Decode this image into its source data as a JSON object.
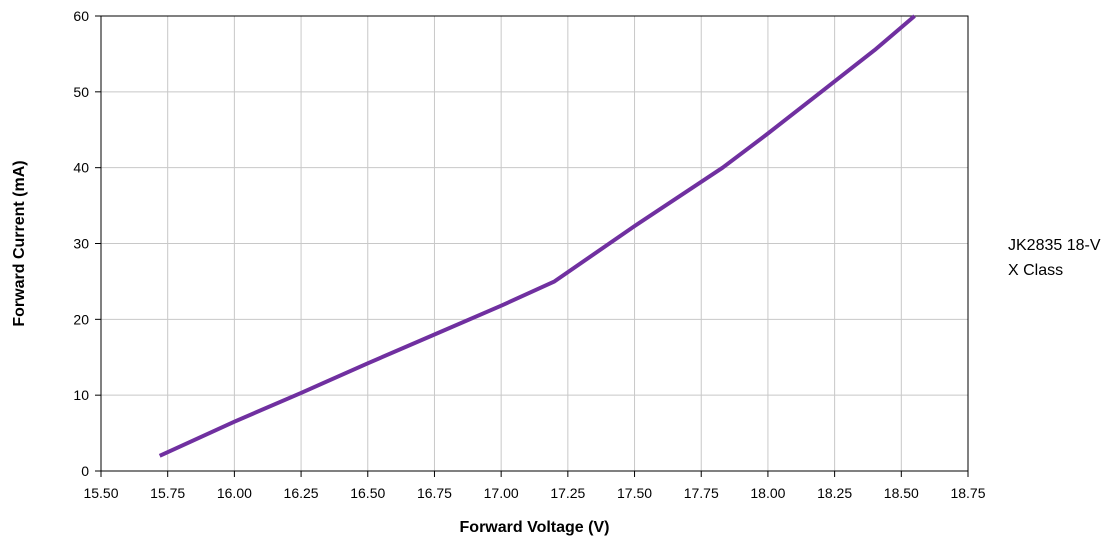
{
  "chart_data": {
    "type": "line",
    "title": "",
    "xlabel": "Forward Voltage (V)",
    "ylabel": "Forward Current (mA)",
    "xlim": [
      15.5,
      18.75
    ],
    "ylim": [
      0,
      60
    ],
    "x_ticks": [
      "15.50",
      "15.75",
      "16.00",
      "16.25",
      "16.50",
      "16.75",
      "17.00",
      "17.25",
      "17.50",
      "17.75",
      "18.00",
      "18.25",
      "18.50",
      "18.75"
    ],
    "y_ticks": [
      "0",
      "10",
      "20",
      "30",
      "40",
      "50",
      "60"
    ],
    "grid": true,
    "legend_position": "right",
    "series": [
      {
        "name": "JK2835 18-V X Class",
        "legend_lines": [
          "JK2835 18-V",
          "X Class"
        ],
        "color": "#7030A0",
        "x": [
          15.72,
          16.0,
          16.25,
          16.5,
          16.75,
          17.0,
          17.2,
          17.5,
          17.83,
          18.0,
          18.2,
          18.4,
          18.55
        ],
        "y": [
          2,
          6.5,
          10.3,
          14.2,
          18.0,
          21.8,
          25,
          32.3,
          40,
          44.5,
          50,
          55.5,
          60
        ]
      }
    ]
  }
}
